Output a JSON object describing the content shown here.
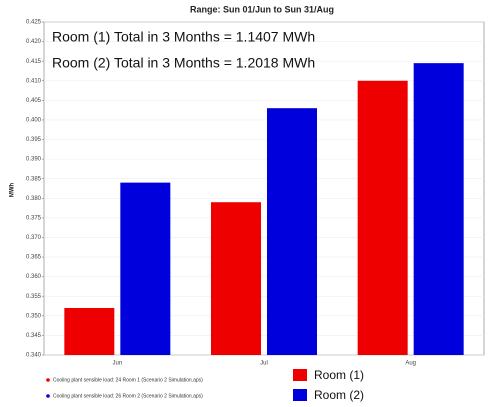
{
  "chart_data": {
    "type": "bar",
    "title": "Range: Sun 01/Jun to Sun 31/Aug",
    "y_label": "MWh",
    "categories": [
      "Jun",
      "Jul",
      "Aug"
    ],
    "series": [
      {
        "name": "Room (1)",
        "color": "#ee0000",
        "values": [
          0.352,
          0.379,
          0.41
        ],
        "description": "Cooling plant sensible load: 24 Room 1 (Scenario 2 Simulation.aps)"
      },
      {
        "name": "Room (2)",
        "color": "#0000dd",
        "values": [
          0.384,
          0.403,
          0.4145
        ],
        "description": "Cooling plant sensible load: 26 Room 2 (Scenario 2 Simulation.aps)"
      }
    ],
    "annotations": [
      "Room (1) Total in 3 Months = 1.1407 MWh",
      "Room (2) Total in 3 Months = 1.2018 MWh"
    ],
    "ylim": [
      0.34,
      0.425
    ],
    "yticks": [
      {
        "value": 0.34,
        "label": "0.340"
      },
      0.345,
      {
        "value": 0.35,
        "label": "0.350"
      },
      0.355,
      {
        "value": 0.36,
        "label": "0.360"
      },
      0.365,
      {
        "value": 0.37,
        "label": "0.370"
      },
      0.375,
      {
        "value": 0.38,
        "label": "0.380"
      },
      0.385,
      {
        "value": 0.39,
        "label": "0.390"
      },
      0.395,
      {
        "value": 0.4,
        "label": "0.400"
      },
      0.405,
      {
        "value": 0.41,
        "label": "0.410"
      },
      0.415,
      {
        "value": 0.42,
        "label": "0.420"
      },
      0.425
    ],
    "grid": true
  }
}
